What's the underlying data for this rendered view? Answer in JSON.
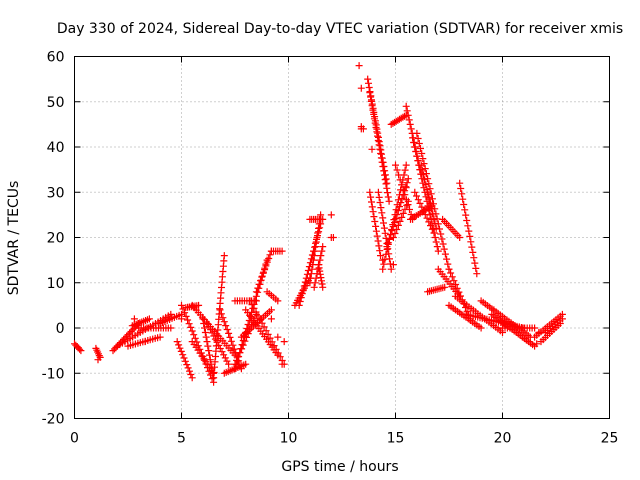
{
  "chart_data": {
    "type": "scatter",
    "title": "Day 330 of 2024, Sidereal Day-to-day VTEC variation (SDTVAR) for receiver xmis",
    "xlabel": "GPS time / hours",
    "ylabel": "SDTVAR / TECUs",
    "xlim": [
      0,
      25
    ],
    "ylim": [
      -20,
      60
    ],
    "xticks": [
      0,
      5,
      10,
      15,
      20,
      25
    ],
    "yticks": [
      -20,
      -10,
      0,
      10,
      20,
      30,
      40,
      50,
      60
    ],
    "grid": true,
    "marker": "+",
    "marker_color": "#ff0000",
    "tracks": [
      {
        "from": [
          0.0,
          -3.5
        ],
        "to": [
          0.3,
          -5
        ],
        "n": 6
      },
      {
        "from": [
          1.0,
          -4.5
        ],
        "to": [
          1.2,
          -6.5
        ],
        "n": 6
      },
      {
        "from": [
          1.8,
          -5
        ],
        "to": [
          3.0,
          1
        ],
        "n": 18
      },
      {
        "from": [
          2.0,
          -4
        ],
        "to": [
          4.5,
          3
        ],
        "n": 22
      },
      {
        "from": [
          2.5,
          -4
        ],
        "to": [
          4.0,
          -2
        ],
        "n": 14
      },
      {
        "from": [
          2.7,
          0.5
        ],
        "to": [
          3.5,
          2
        ],
        "n": 10
      },
      {
        "from": [
          3.0,
          0
        ],
        "to": [
          4.5,
          0
        ],
        "n": 14
      },
      {
        "from": [
          4.0,
          1
        ],
        "to": [
          5.0,
          3
        ],
        "n": 10
      },
      {
        "from": [
          4.8,
          -3
        ],
        "to": [
          5.5,
          -11
        ],
        "n": 12
      },
      {
        "from": [
          5.0,
          5
        ],
        "to": [
          6.5,
          -12
        ],
        "n": 22
      },
      {
        "from": [
          5.2,
          4.5
        ],
        "to": [
          5.8,
          5
        ],
        "n": 8
      },
      {
        "from": [
          5.5,
          -3
        ],
        "to": [
          6.5,
          -10
        ],
        "n": 12
      },
      {
        "from": [
          6.0,
          2
        ],
        "to": [
          6.5,
          -11
        ],
        "n": 14
      },
      {
        "from": [
          6.2,
          1
        ],
        "to": [
          7.2,
          -8
        ],
        "n": 14
      },
      {
        "from": [
          6.5,
          -11
        ],
        "to": [
          7.0,
          16
        ],
        "n": 24
      },
      {
        "from": [
          5.5,
          5
        ],
        "to": [
          7.5,
          -6
        ],
        "n": 22
      },
      {
        "from": [
          7.0,
          -10
        ],
        "to": [
          8.0,
          -8
        ],
        "n": 12
      },
      {
        "from": [
          6.8,
          4
        ],
        "to": [
          7.8,
          -9
        ],
        "n": 16
      },
      {
        "from": [
          7.5,
          -8
        ],
        "to": [
          8.5,
          3
        ],
        "n": 14
      },
      {
        "from": [
          7.8,
          -2
        ],
        "to": [
          9.2,
          4
        ],
        "n": 16
      },
      {
        "from": [
          7.5,
          6
        ],
        "to": [
          8.5,
          6
        ],
        "n": 10
      },
      {
        "from": [
          8.0,
          4
        ],
        "to": [
          9.5,
          -6
        ],
        "n": 18
      },
      {
        "from": [
          8.2,
          6
        ],
        "to": [
          9.8,
          -8
        ],
        "n": 18
      },
      {
        "from": [
          7.5,
          -9
        ],
        "to": [
          9.0,
          15
        ],
        "n": 28
      },
      {
        "from": [
          8.5,
          8
        ],
        "to": [
          9.2,
          17
        ],
        "n": 12
      },
      {
        "from": [
          9.2,
          17
        ],
        "to": [
          9.7,
          17
        ],
        "n": 6
      },
      {
        "from": [
          9.0,
          8
        ],
        "to": [
          9.5,
          6
        ],
        "n": 6
      },
      {
        "from": [
          10.3,
          5
        ],
        "to": [
          11.0,
          11
        ],
        "n": 12
      },
      {
        "from": [
          10.5,
          5
        ],
        "to": [
          11.5,
          23
        ],
        "n": 22
      },
      {
        "from": [
          11.0,
          10
        ],
        "to": [
          11.5,
          25
        ],
        "n": 16
      },
      {
        "from": [
          11.0,
          24
        ],
        "to": [
          11.6,
          24
        ],
        "n": 8
      },
      {
        "from": [
          11.4,
          14
        ],
        "to": [
          11.6,
          9
        ],
        "n": 8
      },
      {
        "from": [
          11.2,
          9
        ],
        "to": [
          11.6,
          18
        ],
        "n": 10
      },
      {
        "from": [
          13.4,
          44
        ],
        "to": [
          13.4,
          44.5
        ],
        "n": 2
      },
      {
        "from": [
          13.7,
          55
        ],
        "to": [
          14.6,
          32
        ],
        "n": 26
      },
      {
        "from": [
          13.8,
          52
        ],
        "to": [
          14.7,
          28
        ],
        "n": 26
      },
      {
        "from": [
          13.8,
          30
        ],
        "to": [
          14.3,
          16
        ],
        "n": 14
      },
      {
        "from": [
          14.2,
          30
        ],
        "to": [
          14.8,
          13
        ],
        "n": 16
      },
      {
        "from": [
          14.8,
          45
        ],
        "to": [
          15.5,
          47
        ],
        "n": 10
      },
      {
        "from": [
          14.4,
          13
        ],
        "to": [
          15.5,
          36
        ],
        "n": 22
      },
      {
        "from": [
          14.6,
          18
        ],
        "to": [
          15.6,
          33
        ],
        "n": 18
      },
      {
        "from": [
          14.9,
          20
        ],
        "to": [
          15.6,
          28
        ],
        "n": 10
      },
      {
        "from": [
          15.5,
          49
        ],
        "to": [
          16.2,
          34
        ],
        "n": 16
      },
      {
        "from": [
          15.0,
          36
        ],
        "to": [
          15.8,
          24
        ],
        "n": 12
      },
      {
        "from": [
          15.8,
          42
        ],
        "to": [
          17.0,
          17
        ],
        "n": 26
      },
      {
        "from": [
          16.0,
          43
        ],
        "to": [
          17.5,
          13
        ],
        "n": 28
      },
      {
        "from": [
          15.9,
          30
        ],
        "to": [
          16.8,
          21
        ],
        "n": 12
      },
      {
        "from": [
          16.2,
          36
        ],
        "to": [
          16.9,
          22
        ],
        "n": 14
      },
      {
        "from": [
          15.7,
          24
        ],
        "to": [
          16.7,
          27
        ],
        "n": 12
      },
      {
        "from": [
          16.5,
          30
        ],
        "to": [
          16.8,
          24
        ],
        "n": 6
      },
      {
        "from": [
          16.5,
          8
        ],
        "to": [
          17.3,
          9
        ],
        "n": 10
      },
      {
        "from": [
          17.0,
          13
        ],
        "to": [
          18.0,
          7
        ],
        "n": 12
      },
      {
        "from": [
          17.2,
          24
        ],
        "to": [
          18.0,
          20
        ],
        "n": 10
      },
      {
        "from": [
          17.5,
          13
        ],
        "to": [
          18.5,
          2
        ],
        "n": 14
      },
      {
        "from": [
          18.0,
          32
        ],
        "to": [
          18.8,
          12
        ],
        "n": 18
      },
      {
        "from": [
          17.5,
          5
        ],
        "to": [
          19.0,
          0
        ],
        "n": 16
      },
      {
        "from": [
          17.8,
          7
        ],
        "to": [
          20.0,
          -1
        ],
        "n": 22
      },
      {
        "from": [
          18.3,
          3
        ],
        "to": [
          21.0,
          0
        ],
        "n": 26
      },
      {
        "from": [
          19.0,
          6
        ],
        "to": [
          21.3,
          -2
        ],
        "n": 24
      },
      {
        "from": [
          19.5,
          3
        ],
        "to": [
          21.5,
          -4
        ],
        "n": 22
      },
      {
        "from": [
          20.0,
          0
        ],
        "to": [
          21.5,
          0
        ],
        "n": 14
      },
      {
        "from": [
          21.5,
          -2
        ],
        "to": [
          22.8,
          3
        ],
        "n": 14
      },
      {
        "from": [
          21.8,
          -3
        ],
        "to": [
          22.7,
          1
        ],
        "n": 10
      },
      {
        "from": [
          22.0,
          -1
        ],
        "to": [
          22.8,
          2
        ],
        "n": 8
      }
    ],
    "points": [
      [
        13.3,
        58
      ],
      [
        13.4,
        53
      ],
      [
        13.5,
        44
      ],
      [
        13.9,
        39.5
      ],
      [
        12.0,
        25
      ],
      [
        12.0,
        20
      ],
      [
        12.1,
        20
      ],
      [
        1.1,
        -7
      ],
      [
        2.8,
        2
      ],
      [
        3.3,
        -3
      ],
      [
        5.0,
        2
      ],
      [
        9.2,
        2
      ],
      [
        9.5,
        -2
      ],
      [
        9.8,
        -3
      ],
      [
        9.7,
        -8
      ],
      [
        14.4,
        15
      ],
      [
        14.9,
        14
      ],
      [
        15.5,
        31
      ],
      [
        19.6,
        4
      ],
      [
        21.7,
        -1
      ],
      [
        21.6,
        -3.5
      ]
    ]
  }
}
